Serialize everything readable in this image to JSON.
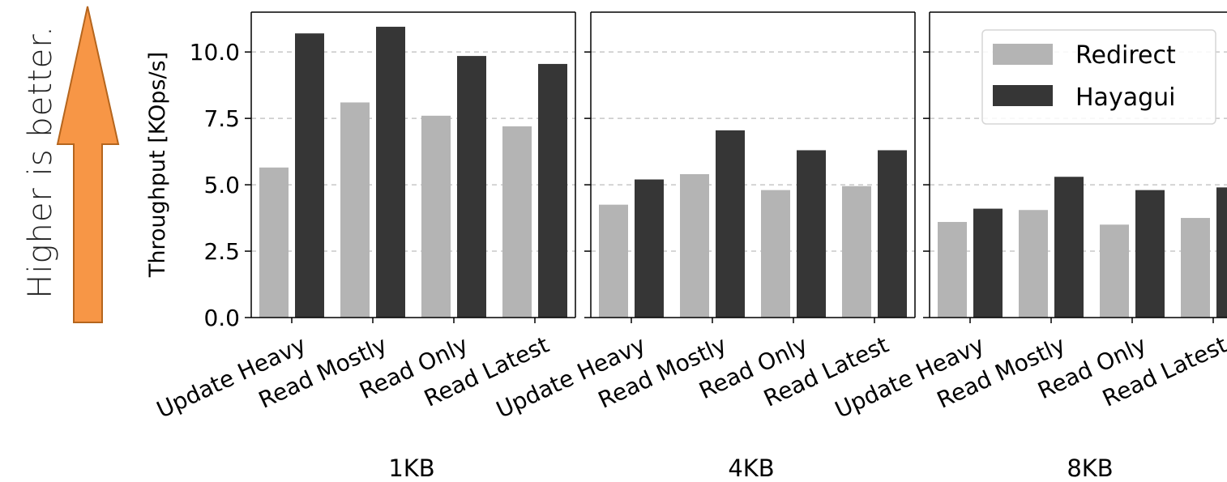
{
  "annotation": {
    "text": "Higher is better.",
    "arrow_color": "#F79646",
    "arrow_edge_color": "#B5651D"
  },
  "chart_data": {
    "type": "bar",
    "ylabel": "Throughput [KOps/s]",
    "ylim": [
      0,
      11.5
    ],
    "yticks": [
      "0.0",
      "2.5",
      "5.0",
      "7.5",
      "10.0"
    ],
    "ytick_values": [
      0,
      2.5,
      5.0,
      7.5,
      10.0
    ],
    "grid": "horizontal dashed",
    "legend_placement": "top-right",
    "categories": [
      "Update Heavy",
      "Read Mostly",
      "Read Only",
      "Read Latest"
    ],
    "series_colors": {
      "Redirect": "#b4b4b4",
      "Hayagui": "#363636"
    },
    "panels": [
      {
        "title": "1KB",
        "series": [
          {
            "name": "Redirect",
            "values": [
              5.65,
              8.1,
              7.6,
              7.2
            ]
          },
          {
            "name": "Hayagui",
            "values": [
              10.7,
              10.95,
              9.85,
              9.55
            ]
          }
        ]
      },
      {
        "title": "4KB",
        "series": [
          {
            "name": "Redirect",
            "values": [
              4.25,
              5.4,
              4.8,
              4.95
            ]
          },
          {
            "name": "Hayagui",
            "values": [
              5.2,
              7.05,
              6.3,
              6.3
            ]
          }
        ]
      },
      {
        "title": "8KB",
        "series": [
          {
            "name": "Redirect",
            "values": [
              3.6,
              4.05,
              3.5,
              3.75
            ]
          },
          {
            "name": "Hayagui",
            "values": [
              4.1,
              5.3,
              4.8,
              4.9
            ]
          }
        ]
      }
    ]
  }
}
